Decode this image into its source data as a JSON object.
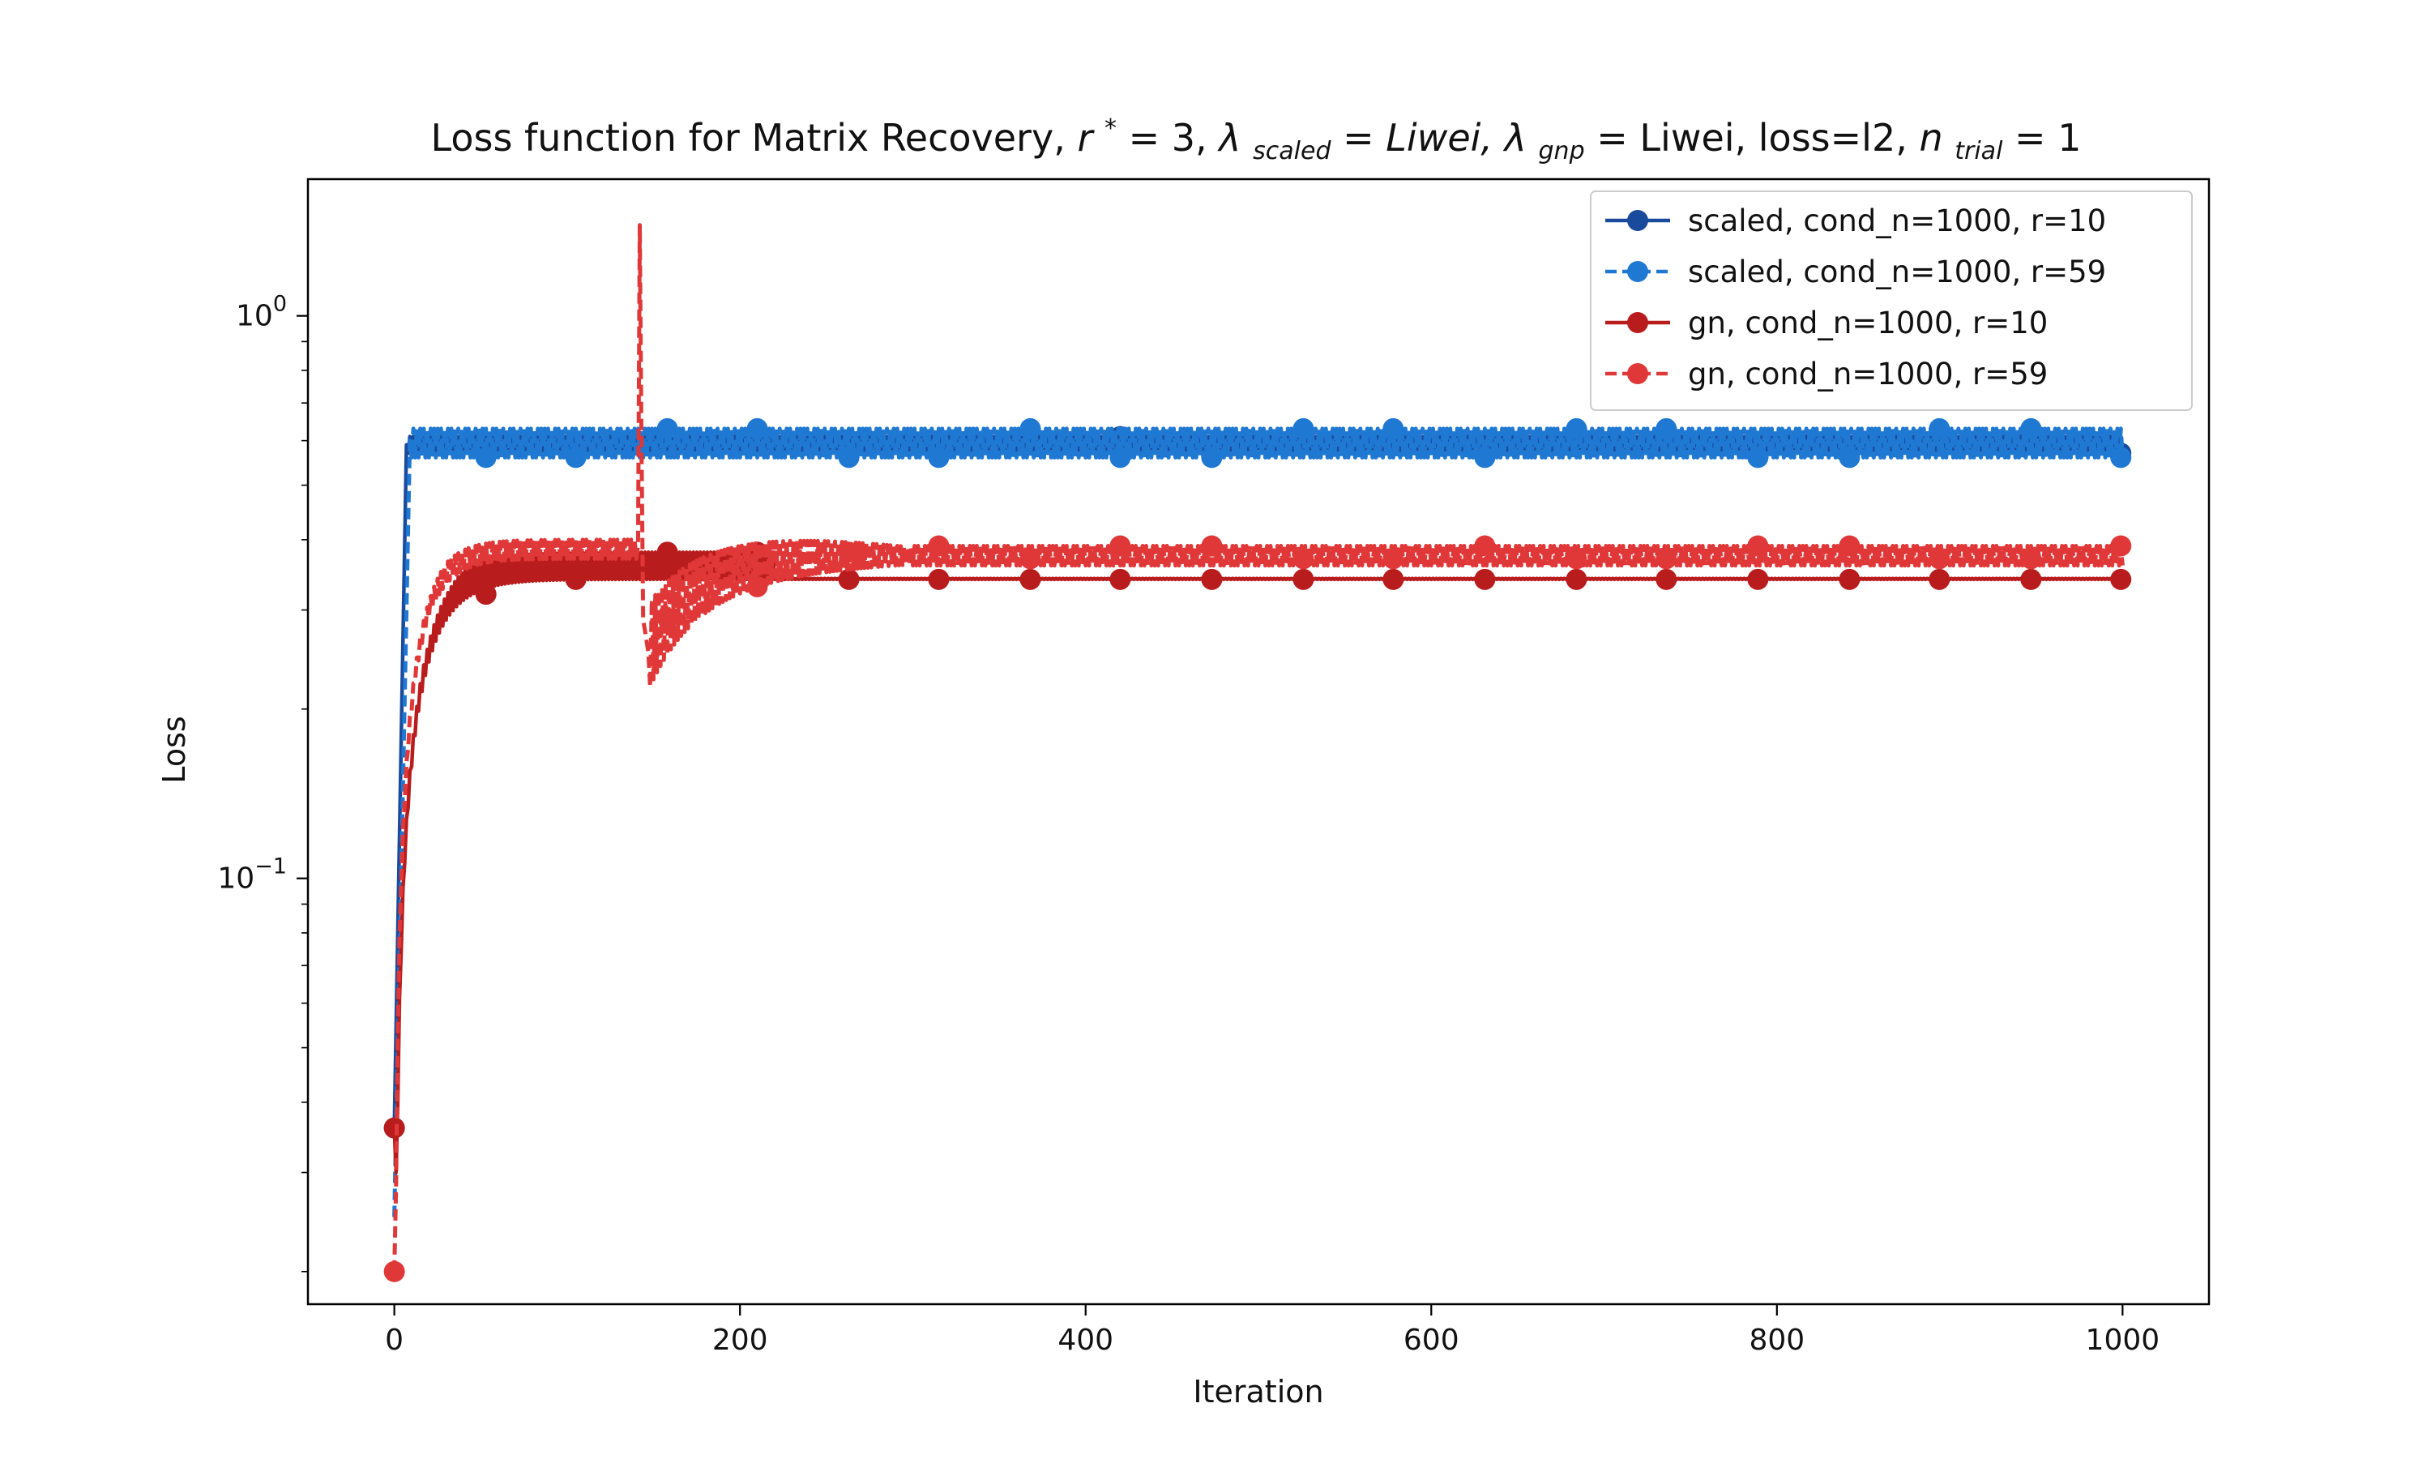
{
  "chart_data": {
    "type": "line",
    "title": {
      "prefix": "Loss function for Matrix Recovery, ",
      "r_symbol": "r",
      "r_sup": "*",
      "r_value": " = 3, ",
      "lambda": "λ",
      "scaled_sub": "scaled",
      "scaled_value": " = Liwei, ",
      "gnp_sub": "gnp",
      "gnp_value": " = Liwei, loss=l2, ",
      "n_symbol": "n",
      "trial_sub": "trial",
      "n_value": " = 1"
    },
    "xlabel": "Iteration",
    "ylabel": "Loss",
    "y_scale": "log",
    "xlim": [
      -50,
      1050
    ],
    "ylim": [
      0.0175,
      1.75
    ],
    "x_ticks": [
      {
        "value": 0,
        "label": "0"
      },
      {
        "value": 200,
        "label": "200"
      },
      {
        "value": 400,
        "label": "400"
      },
      {
        "value": 600,
        "label": "600"
      },
      {
        "value": 800,
        "label": "800"
      },
      {
        "value": 1000,
        "label": "1000"
      }
    ],
    "y_ticks": [
      {
        "value": 1,
        "base": "10",
        "exp": "0"
      },
      {
        "value": 0.1,
        "base": "10",
        "exp": "−1"
      }
    ],
    "grid": false,
    "legend_position": "top-right",
    "series": [
      {
        "name": "scaled, cond_n=1000, r=10",
        "color": "#1a4a9c",
        "line_style": "solid",
        "marker": "circle",
        "start": [
          0,
          0.036
        ],
        "rise_to": [
          7,
          0.59
        ],
        "band": [
          0.57,
          0.61
        ],
        "markers": [
          [
            0,
            0.036
          ],
          [
            53,
            0.57
          ],
          [
            105,
            0.57
          ],
          [
            158,
            0.61
          ],
          [
            210,
            0.61
          ],
          [
            263,
            0.57
          ],
          [
            315,
            0.57
          ],
          [
            368,
            0.61
          ],
          [
            420,
            0.61
          ],
          [
            473,
            0.57
          ],
          [
            526,
            0.61
          ],
          [
            578,
            0.61
          ],
          [
            631,
            0.57
          ],
          [
            684,
            0.61
          ],
          [
            736,
            0.61
          ],
          [
            789,
            0.57
          ],
          [
            842,
            0.57
          ],
          [
            894,
            0.61
          ],
          [
            947,
            0.61
          ],
          [
            999,
            0.57
          ]
        ]
      },
      {
        "name": "scaled, cond_n=1000, r=59",
        "color": "#1f78d1",
        "line_style": "dashed",
        "marker": "circle",
        "start": [
          0,
          0.025
        ],
        "rise_to": [
          9,
          0.6
        ],
        "band": [
          0.56,
          0.63
        ],
        "markers": [
          [
            53,
            0.56
          ],
          [
            105,
            0.56
          ],
          [
            158,
            0.63
          ],
          [
            210,
            0.63
          ],
          [
            263,
            0.56
          ],
          [
            315,
            0.56
          ],
          [
            368,
            0.63
          ],
          [
            420,
            0.56
          ],
          [
            473,
            0.56
          ],
          [
            526,
            0.63
          ],
          [
            578,
            0.63
          ],
          [
            631,
            0.56
          ],
          [
            684,
            0.63
          ],
          [
            736,
            0.63
          ],
          [
            789,
            0.56
          ],
          [
            842,
            0.56
          ],
          [
            894,
            0.63
          ],
          [
            947,
            0.63
          ],
          [
            999,
            0.56
          ]
        ]
      },
      {
        "name": "gn, cond_n=1000, r=10",
        "color": "#b81c1c",
        "line_style": "solid",
        "marker": "circle",
        "start": [
          0,
          0.036
        ],
        "plateau_low": 0.34,
        "plateau_high": 0.38,
        "markers": [
          [
            0,
            0.036
          ],
          [
            53,
            0.32
          ],
          [
            105,
            0.34
          ],
          [
            158,
            0.38
          ],
          [
            210,
            0.38
          ],
          [
            263,
            0.34
          ],
          [
            315,
            0.34
          ],
          [
            368,
            0.34
          ],
          [
            420,
            0.34
          ],
          [
            473,
            0.34
          ],
          [
            526,
            0.34
          ],
          [
            578,
            0.34
          ],
          [
            631,
            0.34
          ],
          [
            684,
            0.34
          ],
          [
            736,
            0.34
          ],
          [
            789,
            0.34
          ],
          [
            842,
            0.34
          ],
          [
            894,
            0.34
          ],
          [
            947,
            0.34
          ],
          [
            999,
            0.34
          ]
        ]
      },
      {
        "name": "gn, cond_n=1000, r=59",
        "color": "#e03838",
        "line_style": "dashed",
        "marker": "circle",
        "start": [
          0,
          0.02
        ],
        "spike": [
          142,
          1.45
        ],
        "dip": [
          148,
          0.24
        ],
        "band": [
          0.36,
          0.39
        ],
        "markers": [
          [
            0,
            0.02
          ],
          [
            158,
            0.29
          ],
          [
            210,
            0.33
          ],
          [
            263,
            0.38
          ],
          [
            315,
            0.39
          ],
          [
            368,
            0.37
          ],
          [
            420,
            0.39
          ],
          [
            473,
            0.39
          ],
          [
            526,
            0.37
          ],
          [
            578,
            0.37
          ],
          [
            631,
            0.39
          ],
          [
            684,
            0.37
          ],
          [
            736,
            0.37
          ],
          [
            789,
            0.39
          ],
          [
            842,
            0.39
          ],
          [
            894,
            0.37
          ],
          [
            947,
            0.37
          ],
          [
            999,
            0.39
          ]
        ]
      }
    ]
  }
}
